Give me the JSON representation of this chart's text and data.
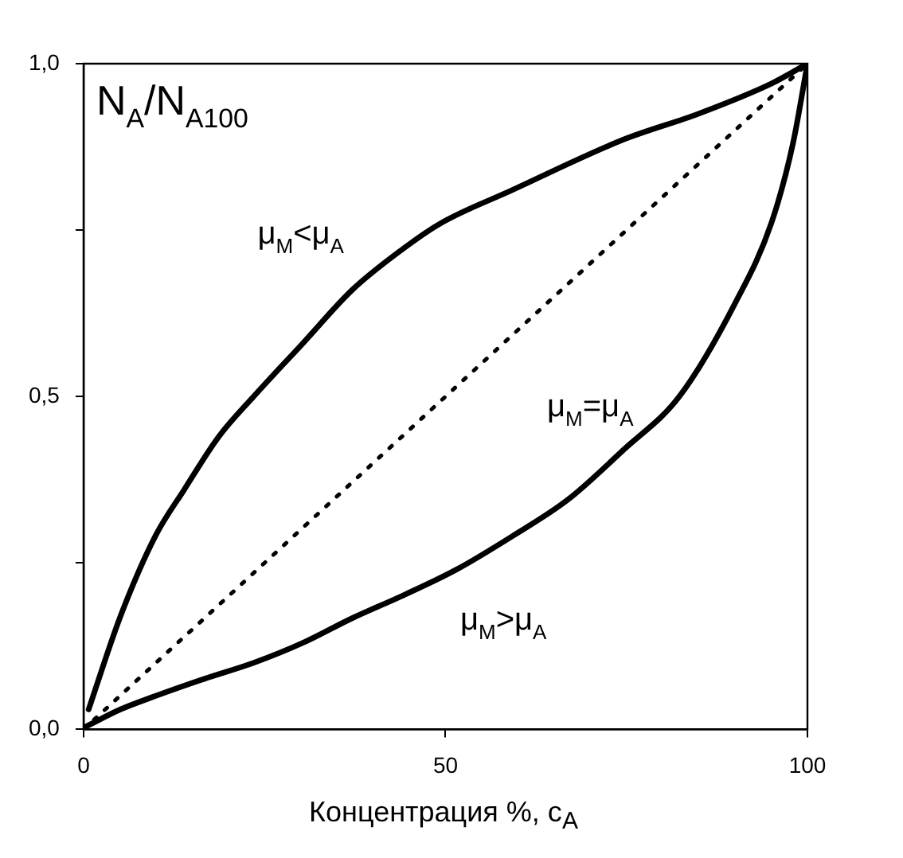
{
  "chart_data": {
    "type": "line",
    "ylabel": "N$_{A}$/N$_{A100}$",
    "xlabel": "Концентрация %, c$_{A}$",
    "xlim": [
      0,
      100
    ],
    "xticks": [
      0,
      50,
      100
    ],
    "ylim": [
      0,
      1
    ],
    "yticks": [
      {
        "value": 0,
        "label": "0,0"
      },
      {
        "value": 0.25,
        "label": null
      },
      {
        "value": 0.5,
        "label": "0,5"
      },
      {
        "value": 0.75,
        "label": null
      },
      {
        "value": 1,
        "label": "1,0"
      }
    ],
    "grid": false,
    "legend": false,
    "marker": "none",
    "series": [
      {
        "color": "#000000",
        "line_style": "solid",
        "x": [
          0.7,
          5.1,
          9.9,
          13.9,
          18.7,
          23.5,
          30.3,
          37.1,
          43.9,
          49.3,
          59.2,
          74.6,
          85,
          95,
          100
        ],
        "values": [
          0.03,
          0.17,
          0.29,
          0.36,
          0.44,
          0.5,
          0.58,
          0.66,
          0.72,
          0.76,
          0.81,
          0.886,
          0.925,
          0.97,
          1
        ]
      },
      {
        "color": "#000000",
        "line_style": "dotted",
        "x": [
          0,
          100
        ],
        "values": [
          0,
          1
        ]
      },
      {
        "color": "#000000",
        "line_style": "solid",
        "x": [
          0.3,
          5.1,
          9.9,
          16.7,
          23.5,
          30.3,
          37.1,
          43.9,
          51.5,
          59.2,
          66.9,
          74.6,
          82.3,
          90,
          95,
          98,
          100
        ],
        "values": [
          0.004,
          0.03,
          0.05,
          0.076,
          0.1,
          0.13,
          0.167,
          0.2,
          0.24,
          0.29,
          0.345,
          0.42,
          0.5,
          0.64,
          0.76,
          0.88,
          1
        ]
      }
    ],
    "annotations": [
      "μ$_{M}$<μ$_{A}$",
      "μ$_{M}$=μ$_{A}$",
      "μ$_{M}$>μ$_{A}$"
    ]
  }
}
